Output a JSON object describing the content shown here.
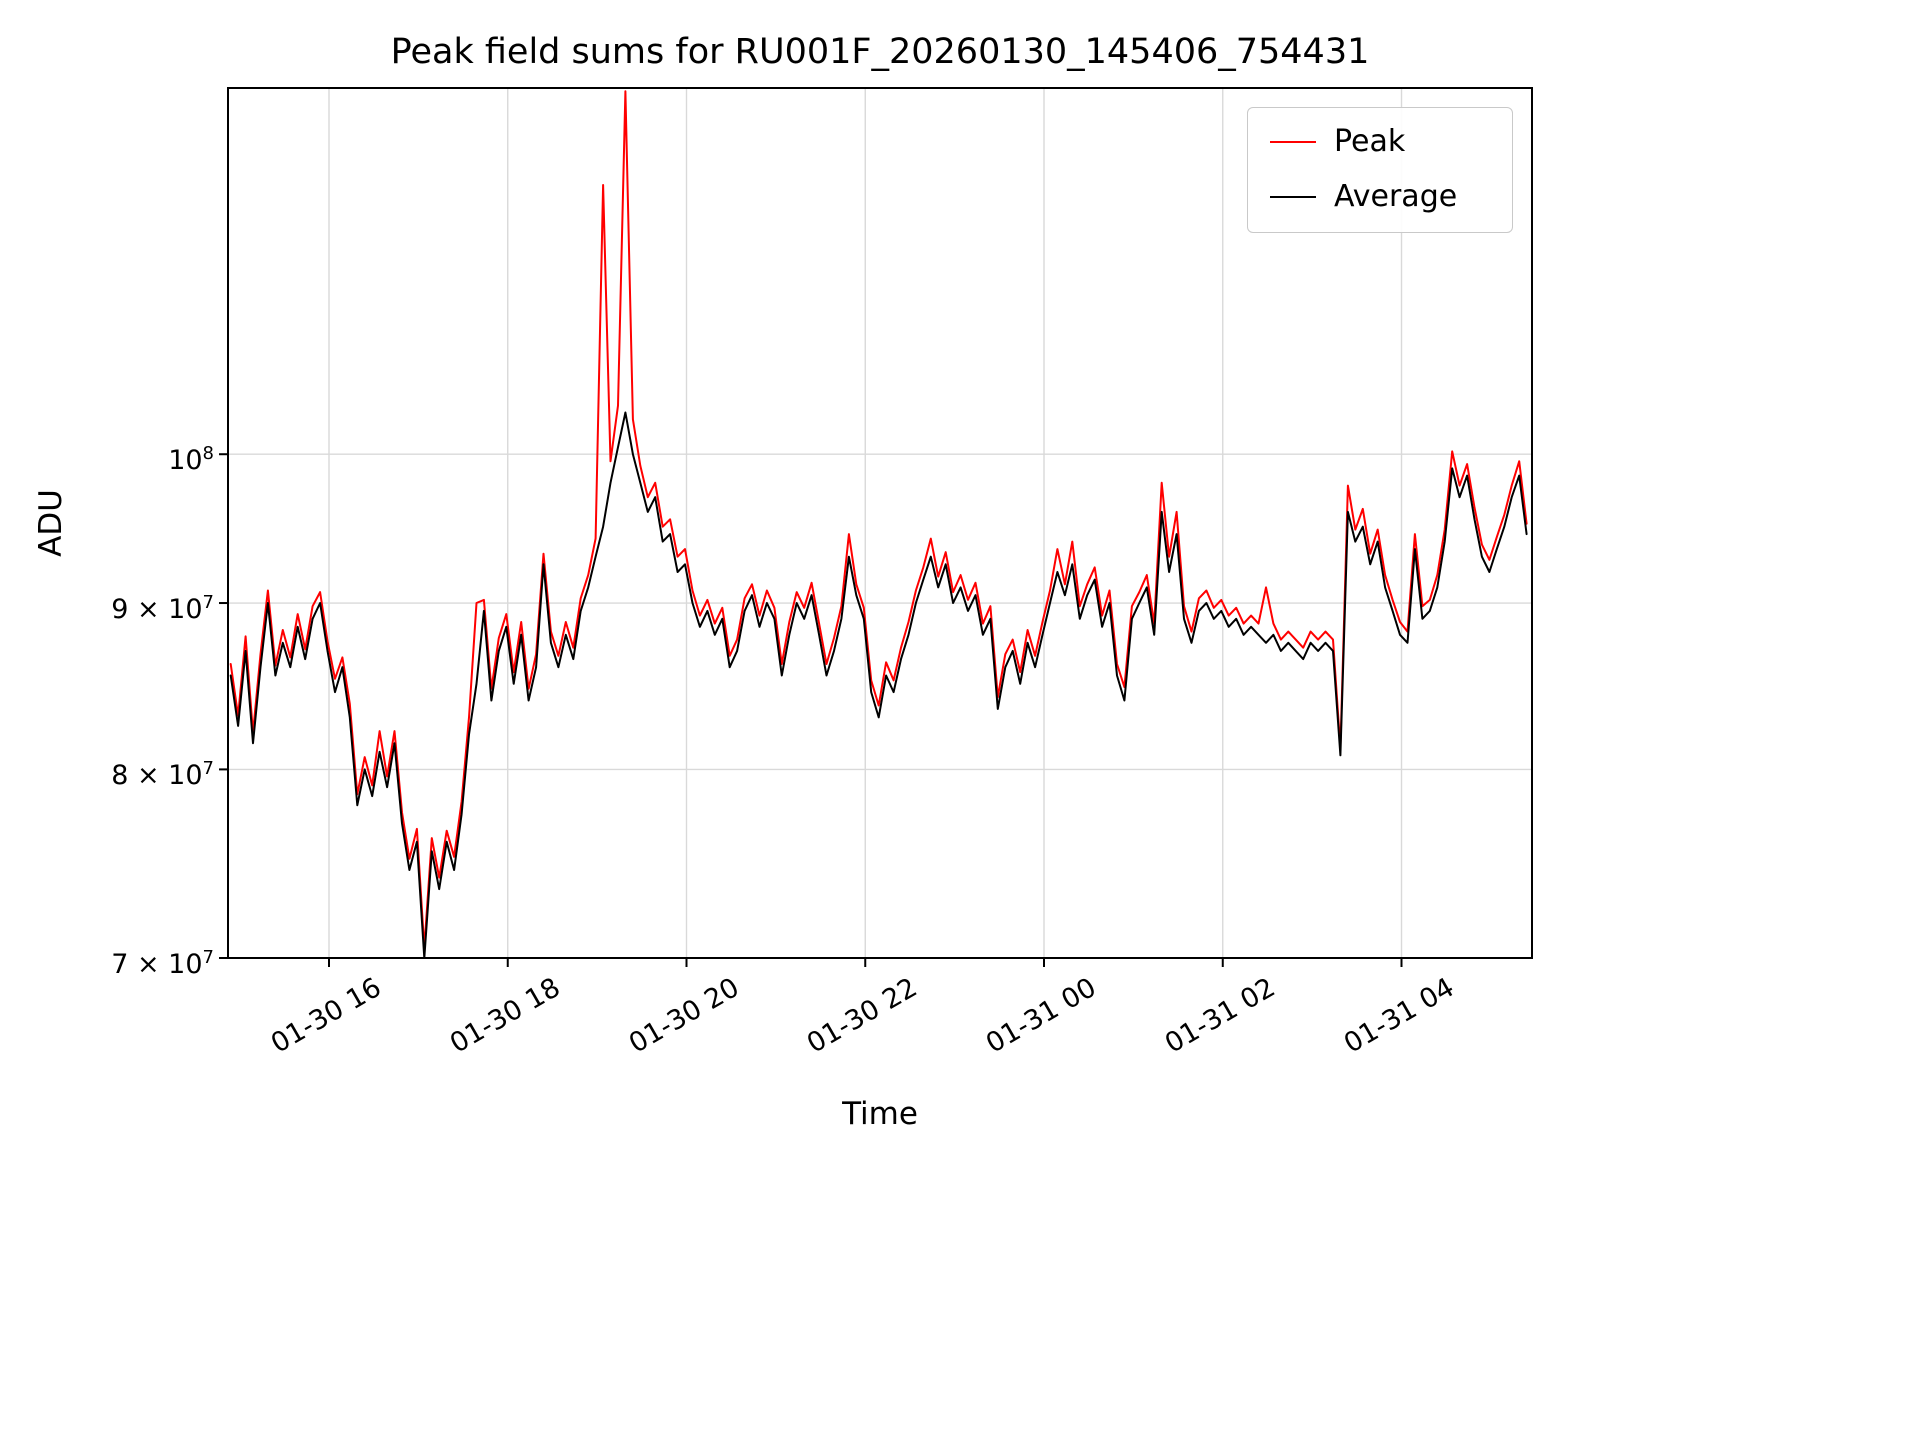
{
  "chart_data": {
    "type": "line",
    "title": "Peak field sums for RU001F_20260130_145406_754431",
    "xlabel": "Time",
    "ylabel": "ADU",
    "yscale": "log",
    "grid": true,
    "legend_position": "upper right",
    "x_axis_note": "hours since 2026-01-30 00:00",
    "x_start": 14.9,
    "x_step": 0.0833333,
    "xlim": [
      14.87,
      29.46
    ],
    "ylim": [
      70000000,
      129600000
    ],
    "values_scale": 10000000,
    "x_ticks": [
      {
        "value": 16,
        "label": "01-30 16"
      },
      {
        "value": 18,
        "label": "01-30 18"
      },
      {
        "value": 20,
        "label": "01-30 20"
      },
      {
        "value": 22,
        "label": "01-30 22"
      },
      {
        "value": 24,
        "label": "01-31 00"
      },
      {
        "value": 26,
        "label": "01-31 02"
      },
      {
        "value": 28,
        "label": "01-31 04"
      }
    ],
    "y_ticks": [
      {
        "value": 70000000,
        "coeff": "7",
        "exp": "7"
      },
      {
        "value": 80000000,
        "coeff": "8",
        "exp": "7"
      },
      {
        "value": 90000000,
        "coeff": "9",
        "exp": "7"
      },
      {
        "value": 100000000,
        "coeff": null,
        "exp": "8"
      }
    ],
    "series": [
      {
        "name": "Peak",
        "color": "#ff0000",
        "values_e7": [
          8.62,
          8.31,
          8.79,
          8.21,
          8.68,
          9.08,
          8.61,
          8.83,
          8.66,
          8.93,
          8.71,
          8.98,
          9.07,
          8.76,
          8.53,
          8.66,
          8.38,
          7.86,
          8.07,
          7.91,
          8.22,
          7.96,
          8.22,
          7.76,
          7.51,
          7.67,
          7.05,
          7.62,
          7.41,
          7.66,
          7.52,
          7.82,
          8.3,
          9.0,
          9.02,
          8.47,
          8.78,
          8.93,
          8.57,
          8.88,
          8.47,
          8.68,
          9.32,
          8.82,
          8.67,
          8.88,
          8.72,
          9.03,
          9.18,
          9.42,
          12.1,
          9.95,
          10.35,
          12.93,
          10.25,
          9.92,
          9.7,
          9.8,
          9.5,
          9.55,
          9.3,
          9.35,
          9.08,
          8.92,
          9.02,
          8.87,
          8.97,
          8.67,
          8.77,
          9.03,
          9.12,
          8.92,
          9.08,
          8.97,
          8.62,
          8.88,
          9.07,
          8.97,
          9.13,
          8.87,
          8.62,
          8.78,
          8.98,
          9.45,
          9.12,
          8.97,
          8.52,
          8.37,
          8.63,
          8.52,
          8.72,
          8.88,
          9.08,
          9.23,
          9.42,
          9.17,
          9.33,
          9.07,
          9.18,
          9.02,
          9.13,
          8.87,
          8.98,
          8.42,
          8.68,
          8.77,
          8.57,
          8.83,
          8.67,
          8.88,
          9.08,
          9.35,
          9.12,
          9.4,
          8.98,
          9.12,
          9.23,
          8.92,
          9.08,
          8.62,
          8.48,
          8.98,
          9.07,
          9.18,
          8.87,
          9.8,
          9.3,
          9.6,
          8.98,
          8.82,
          9.03,
          9.08,
          8.97,
          9.02,
          8.92,
          8.97,
          8.87,
          8.92,
          8.87,
          9.1,
          8.87,
          8.77,
          8.82,
          8.77,
          8.72,
          8.82,
          8.77,
          8.82,
          8.77,
          8.12,
          9.78,
          9.48,
          9.62,
          9.32,
          9.48,
          9.18,
          9.02,
          8.88,
          8.82,
          9.45,
          8.98,
          9.02,
          9.18,
          9.48,
          10.02,
          9.78,
          9.93,
          9.63,
          9.38,
          9.28,
          9.43,
          9.58,
          9.78,
          9.95,
          9.52
        ]
      },
      {
        "name": "Average",
        "color": "#000000",
        "values_e7": [
          8.55,
          8.25,
          8.7,
          8.15,
          8.6,
          9.0,
          8.55,
          8.75,
          8.6,
          8.85,
          8.65,
          8.9,
          9.0,
          8.7,
          8.45,
          8.6,
          8.3,
          7.8,
          8.0,
          7.85,
          8.1,
          7.9,
          8.15,
          7.7,
          7.45,
          7.6,
          7.0,
          7.55,
          7.35,
          7.6,
          7.45,
          7.75,
          8.2,
          8.5,
          8.95,
          8.4,
          8.7,
          8.85,
          8.5,
          8.8,
          8.4,
          8.6,
          9.25,
          8.75,
          8.6,
          8.8,
          8.65,
          8.95,
          9.1,
          9.3,
          9.5,
          9.8,
          10.05,
          10.3,
          10.0,
          9.8,
          9.6,
          9.7,
          9.4,
          9.45,
          9.2,
          9.25,
          9.0,
          8.85,
          8.95,
          8.8,
          8.9,
          8.6,
          8.7,
          8.95,
          9.05,
          8.85,
          9.0,
          8.9,
          8.55,
          8.8,
          9.0,
          8.9,
          9.05,
          8.8,
          8.55,
          8.7,
          8.9,
          9.3,
          9.05,
          8.9,
          8.45,
          8.3,
          8.55,
          8.45,
          8.65,
          8.8,
          9.0,
          9.15,
          9.3,
          9.1,
          9.25,
          9.0,
          9.1,
          8.95,
          9.05,
          8.8,
          8.9,
          8.35,
          8.6,
          8.7,
          8.5,
          8.75,
          8.6,
          8.8,
          9.0,
          9.2,
          9.05,
          9.25,
          8.9,
          9.05,
          9.15,
          8.85,
          9.0,
          8.55,
          8.4,
          8.9,
          9.0,
          9.1,
          8.8,
          9.6,
          9.2,
          9.45,
          8.9,
          8.75,
          8.95,
          9.0,
          8.9,
          8.95,
          8.85,
          8.9,
          8.8,
          8.85,
          8.8,
          8.75,
          8.8,
          8.7,
          8.75,
          8.7,
          8.65,
          8.75,
          8.7,
          8.75,
          8.7,
          8.08,
          9.6,
          9.4,
          9.5,
          9.25,
          9.4,
          9.1,
          8.95,
          8.8,
          8.75,
          9.35,
          8.9,
          8.95,
          9.1,
          9.4,
          9.9,
          9.7,
          9.85,
          9.55,
          9.3,
          9.2,
          9.35,
          9.5,
          9.7,
          9.85,
          9.45
        ]
      }
    ]
  }
}
